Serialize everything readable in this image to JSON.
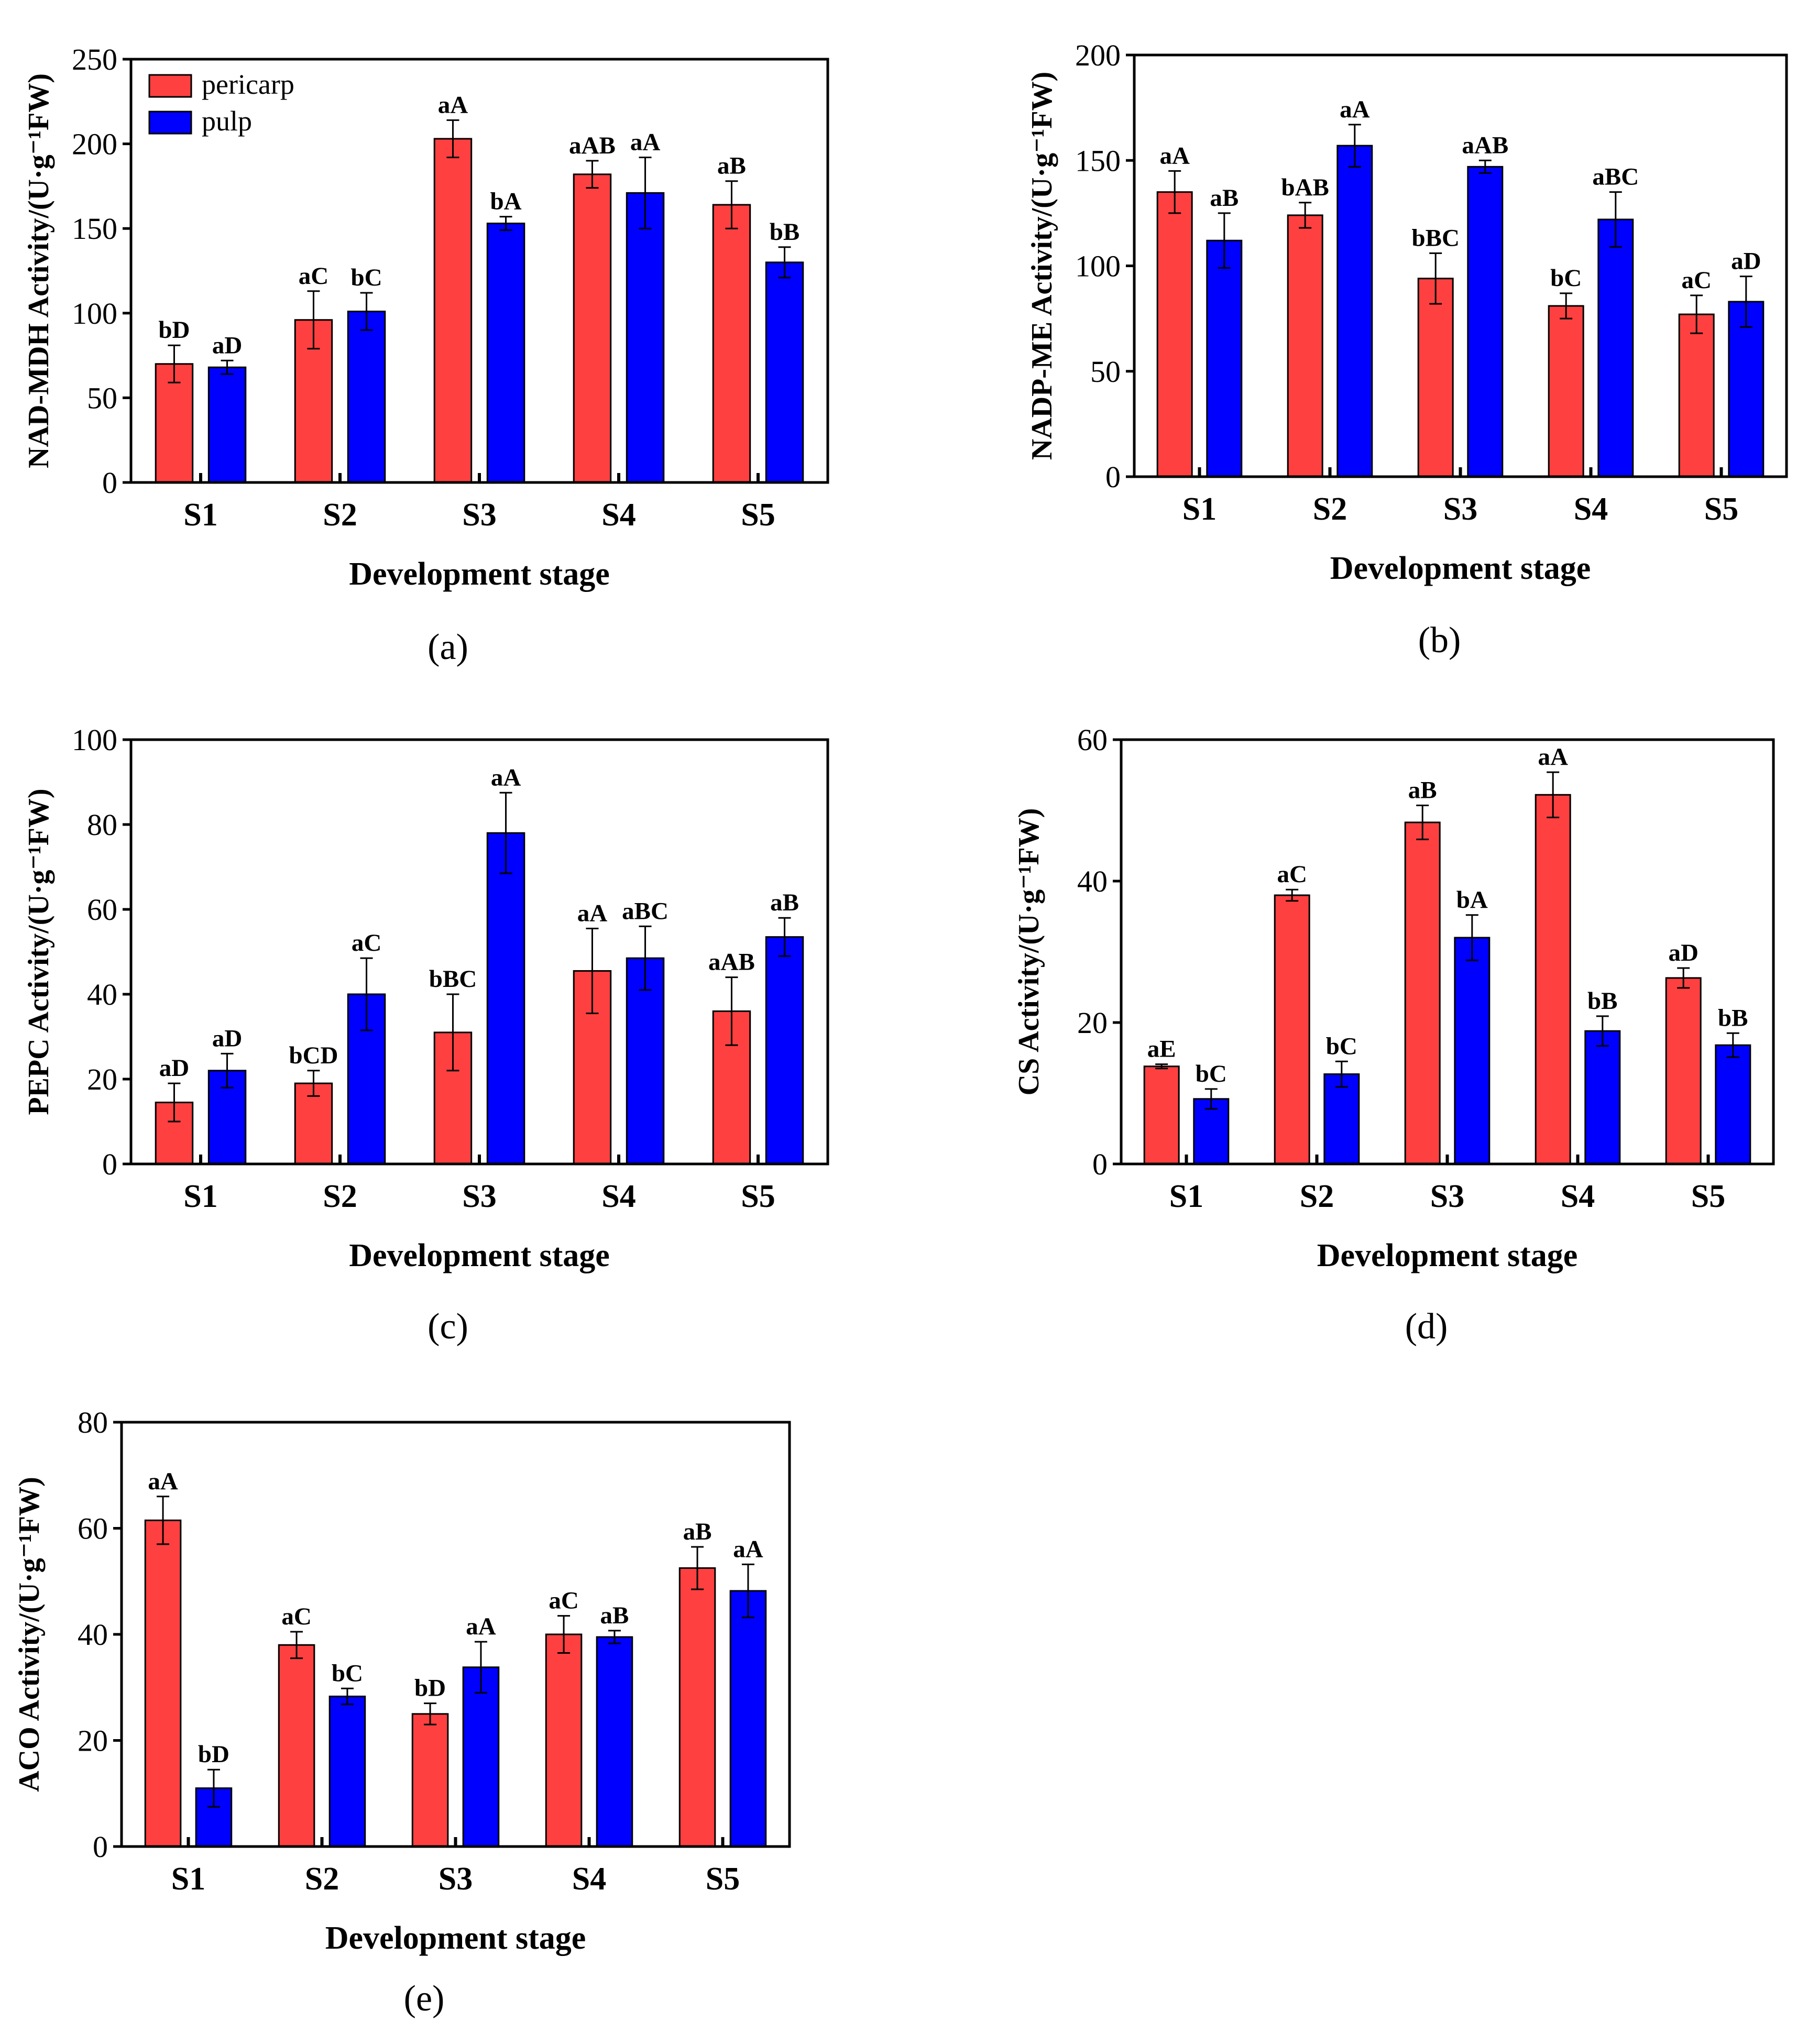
{
  "chart_data": [
    {
      "id": "a",
      "type": "bar",
      "title": "",
      "caption": "(a)",
      "caption_letter": "a",
      "xlabel": "Development stage",
      "ylabel": "NAD-MDH Activity/(U·g⁻¹FW)",
      "ylim": [
        0,
        250
      ],
      "yticks": [
        0,
        50,
        100,
        150,
        200,
        250
      ],
      "categories": [
        "S1",
        "S2",
        "S3",
        "S4",
        "S5"
      ],
      "legend": {
        "position": "top-left",
        "entries": [
          "pericarp",
          "pulp"
        ]
      },
      "series": [
        {
          "name": "pericarp",
          "values": [
            70,
            96,
            203,
            182,
            164
          ],
          "errors": [
            11,
            17,
            11,
            8,
            14
          ],
          "labels": [
            "bD",
            "aC",
            "aA",
            "aAB",
            "aB"
          ]
        },
        {
          "name": "pulp",
          "values": [
            68,
            101,
            153,
            171,
            130
          ],
          "errors": [
            4,
            11,
            4,
            21,
            9
          ],
          "labels": [
            "aD",
            "bC",
            "bA",
            "aA",
            "bB"
          ]
        }
      ]
    },
    {
      "id": "b",
      "type": "bar",
      "title": "",
      "caption": "(b)",
      "caption_letter": "b",
      "xlabel": "Development stage",
      "ylabel": "NADP-ME Activity/(U·g⁻¹FW)",
      "ylim": [
        0,
        200
      ],
      "yticks": [
        0,
        50,
        100,
        150,
        200
      ],
      "categories": [
        "S1",
        "S2",
        "S3",
        "S4",
        "S5"
      ],
      "series": [
        {
          "name": "pericarp",
          "values": [
            135,
            124,
            94,
            81,
            77
          ],
          "errors": [
            10,
            6,
            12,
            6,
            9
          ],
          "labels": [
            "aA",
            "bAB",
            "bBC",
            "bC",
            "aC"
          ]
        },
        {
          "name": "pulp",
          "values": [
            112,
            157,
            147,
            122,
            83
          ],
          "errors": [
            13,
            10,
            3,
            13,
            12
          ],
          "labels": [
            "aB",
            "aA",
            "aAB",
            "aBC",
            "aD"
          ]
        }
      ]
    },
    {
      "id": "c",
      "type": "bar",
      "title": "",
      "caption": "(c)",
      "caption_letter": "c",
      "xlabel": "Development stage",
      "ylabel": "PEPC Activity/(U·g⁻¹FW)",
      "ylim": [
        0,
        100
      ],
      "yticks": [
        0,
        20,
        40,
        60,
        80,
        100
      ],
      "categories": [
        "S1",
        "S2",
        "S3",
        "S4",
        "S5"
      ],
      "series": [
        {
          "name": "pericarp",
          "values": [
            14.5,
            19,
            31,
            45.5,
            36
          ],
          "errors": [
            4.5,
            3,
            9,
            10,
            8
          ],
          "labels": [
            "aD",
            "bCD",
            "bBC",
            "aA",
            "aAB"
          ]
        },
        {
          "name": "pulp",
          "values": [
            22,
            40,
            78,
            48.5,
            53.5
          ],
          "errors": [
            4,
            8.5,
            9.5,
            7.5,
            4.5
          ],
          "labels": [
            "aD",
            "aC",
            "aA",
            "aBC",
            "aB"
          ]
        }
      ]
    },
    {
      "id": "d",
      "type": "bar",
      "title": "",
      "caption": "(d)",
      "caption_letter": "d",
      "xlabel": "Development stage",
      "ylabel": "CS Activity/(U·g⁻¹FW)",
      "ylim": [
        0,
        60
      ],
      "yticks": [
        0,
        20,
        40,
        60
      ],
      "categories": [
        "S1",
        "S2",
        "S3",
        "S4",
        "S5"
      ],
      "series": [
        {
          "name": "pericarp",
          "values": [
            13.8,
            38,
            48.3,
            52.2,
            26.3
          ],
          "errors": [
            0.3,
            0.8,
            2.4,
            3.2,
            1.4
          ],
          "labels": [
            "aE",
            "aC",
            "aB",
            "aA",
            "aD"
          ]
        },
        {
          "name": "pulp",
          "values": [
            9.2,
            12.7,
            32,
            18.8,
            16.8
          ],
          "errors": [
            1.4,
            1.8,
            3.2,
            2.1,
            1.7
          ],
          "labels": [
            "bC",
            "bC",
            "bA",
            "bB",
            "bB"
          ]
        }
      ]
    },
    {
      "id": "e",
      "type": "bar",
      "title": "",
      "caption": "(e)",
      "caption_letter": "e",
      "xlabel": "Development stage",
      "ylabel": "ACO Activity/(U·g⁻¹FW)",
      "ylim": [
        0,
        80
      ],
      "yticks": [
        0,
        20,
        40,
        60,
        80
      ],
      "categories": [
        "S1",
        "S2",
        "S3",
        "S4",
        "S5"
      ],
      "series": [
        {
          "name": "pericarp",
          "values": [
            61.5,
            38,
            25,
            40,
            52.5
          ],
          "errors": [
            4.5,
            2.5,
            2,
            3.5,
            4
          ],
          "labels": [
            "aA",
            "aC",
            "bD",
            "aC",
            "aB"
          ]
        },
        {
          "name": "pulp",
          "values": [
            11,
            28.3,
            33.8,
            39.5,
            48.2
          ],
          "errors": [
            3.5,
            1.5,
            4.8,
            1.2,
            5
          ],
          "labels": [
            "bD",
            "bC",
            "aA",
            "aB",
            "aA"
          ]
        }
      ]
    }
  ],
  "colors": {
    "pericarp": "#ff4040",
    "pulp": "#0000ff",
    "axis": "#000000"
  }
}
